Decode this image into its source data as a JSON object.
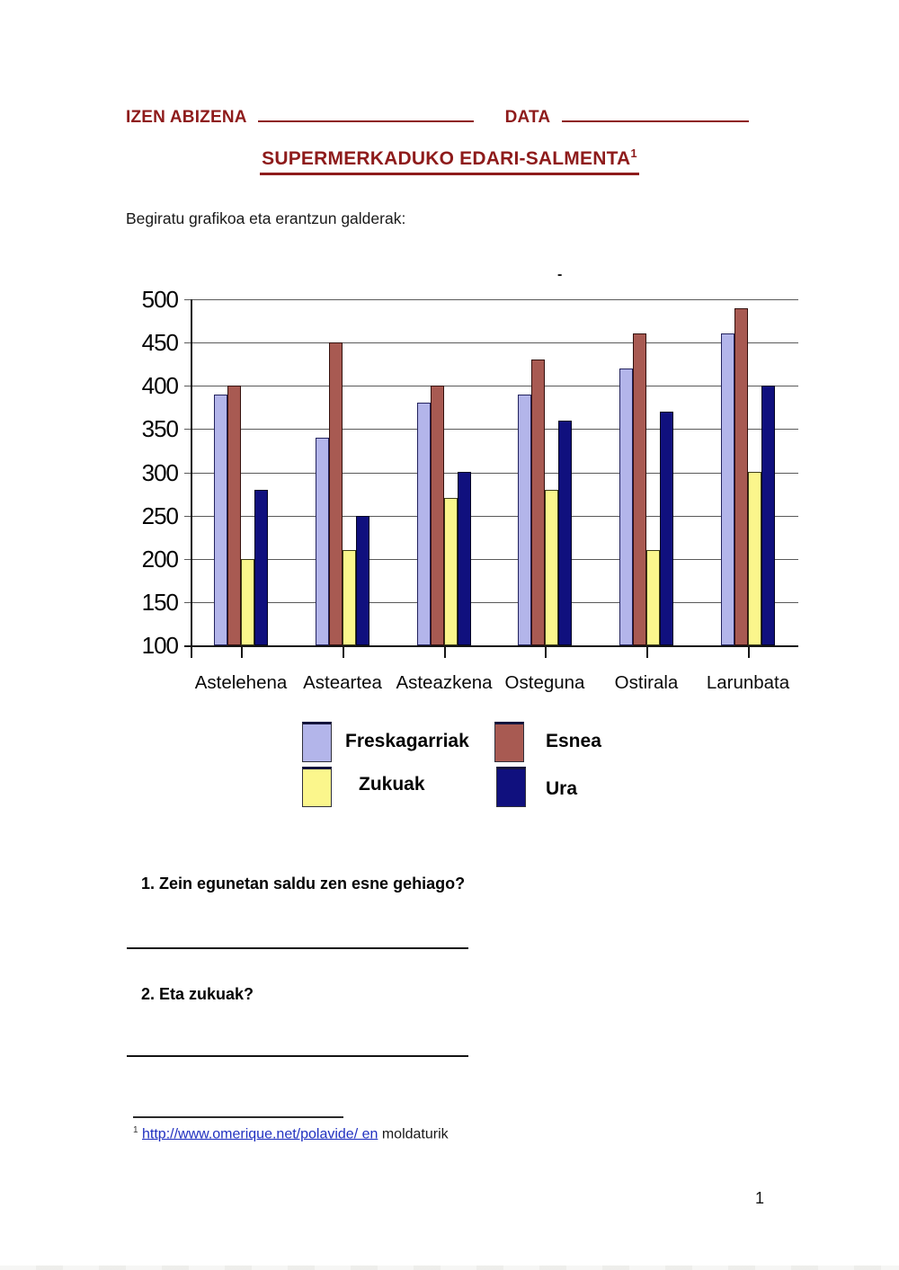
{
  "header": {
    "name_label": "IZEN ABIZENA",
    "date_label": "DATA",
    "title": "SUPERMERKADUKO EDARI-SALMENTA",
    "title_superscript": "1"
  },
  "intro_text": "Begiratu grafikoa eta erantzun galderak:",
  "chart_data": {
    "type": "bar",
    "stray_mark": "-",
    "categories": [
      "Astelehena",
      "Asteartea",
      "Asteazkena",
      "Osteguna",
      "Ostirala",
      "Larunbata"
    ],
    "series": [
      {
        "name": "Freskagarriak",
        "color": "#b3b5ea",
        "border_color": "#23235e",
        "values": [
          390,
          340,
          380,
          390,
          420,
          460
        ]
      },
      {
        "name": "Esnea",
        "color": "#a85a52",
        "border_color": "#33100d",
        "values": [
          400,
          450,
          400,
          430,
          460,
          490
        ]
      },
      {
        "name": "Zukuak",
        "color": "#fbf68c",
        "border_color": "#3c3c18",
        "values": [
          200,
          210,
          270,
          280,
          210,
          300
        ]
      },
      {
        "name": "Ura",
        "color": "#10107e",
        "border_color": "#050522",
        "values": [
          280,
          250,
          300,
          360,
          370,
          400
        ]
      }
    ],
    "ylim": [
      100,
      500
    ],
    "y_ticks": [
      100,
      150,
      200,
      250,
      300,
      350,
      400,
      450,
      500
    ],
    "grid": true,
    "legend_position": "below-two-column",
    "legend_rows": [
      [
        "Freskagarriak",
        "Esnea"
      ],
      [
        "Zukuak",
        "Ura"
      ]
    ]
  },
  "questions": [
    {
      "text": "1. Zein egunetan saldu zen esne gehiago?",
      "has_answer_line": true
    },
    {
      "text": "2. Eta zukuak?",
      "has_answer_line": true
    }
  ],
  "footnote": {
    "superscript": "1",
    "link_text": "http://www.omerique.net/polavide/ en",
    "suffix": "moldaturik"
  },
  "page_number": "1",
  "colors": {
    "heading_red": "#8e1b1b",
    "link_blue": "#2030c0",
    "gridline_gray": "#5a5a5a"
  }
}
